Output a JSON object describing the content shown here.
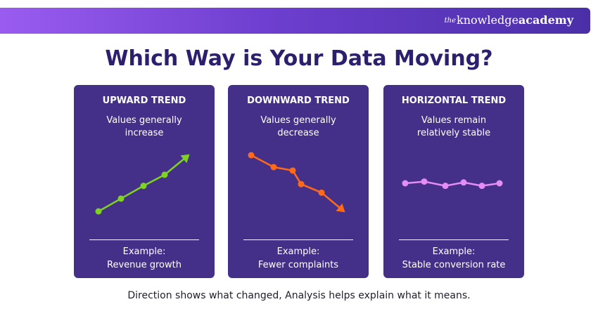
{
  "brand": {
    "the": "the",
    "knowledge": "knowledge",
    "academy": "academy"
  },
  "title": "Which Way is Your Data Moving?",
  "cards": [
    {
      "title": "UPWARD TREND",
      "desc_line1": "Values generally",
      "desc_line2": "increase",
      "example_label": "Example:",
      "example": "Revenue growth",
      "color": "#7ed321",
      "line": [
        0,
        1.5,
        3,
        4.3,
        6.6
      ]
    },
    {
      "title": "DOWNWARD TREND",
      "desc_line1": "Values generally",
      "desc_line2": "decrease",
      "example_label": "Example:",
      "example": "Fewer complaints",
      "color": "#ff6a1a",
      "line": [
        6.6,
        5.2,
        4.8,
        3.2,
        2.2,
        0
      ]
    },
    {
      "title": "HORIZONTAL TREND",
      "desc_line1": "Values remain",
      "desc_line2": "relatively stable",
      "example_label": "Example:",
      "example": "Stable conversion rate",
      "color": "#e58cf5",
      "line": [
        3.3,
        3.5,
        3.0,
        3.4,
        3.0,
        3.3
      ]
    }
  ],
  "caption": "Direction shows what changed, Analysis helps explain what it means."
}
